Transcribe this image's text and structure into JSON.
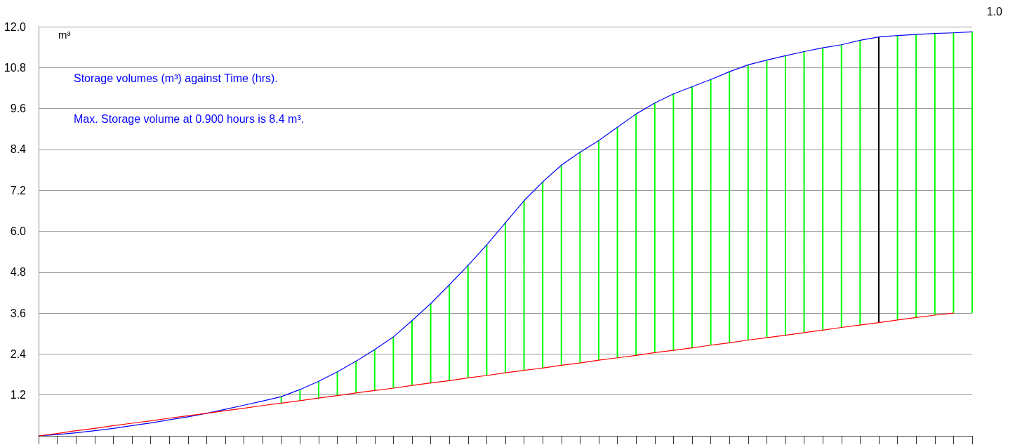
{
  "chart_data": {
    "type": "line",
    "title": "Storage volumes (m³) against Time (hrs).",
    "subtitle": "Max. Storage volume at 0.900 hours is 8.4 m³.",
    "ylabel": "m³",
    "annotations": [
      "1.0"
    ],
    "categories": [
      null,
      null,
      null,
      null,
      null,
      null,
      null,
      null,
      null,
      null,
      null,
      null,
      null,
      null,
      null,
      null,
      null,
      null,
      null,
      null,
      null,
      null,
      null,
      null,
      null,
      null,
      null,
      null,
      null,
      null,
      null,
      null,
      null,
      null,
      null,
      null,
      null,
      null,
      null,
      null,
      null,
      null,
      null,
      null,
      null,
      null,
      null,
      null,
      null,
      null,
      null
    ],
    "ylim": [
      0,
      12
    ],
    "yticks": [
      {
        "value": 1.2,
        "label": "1.2"
      },
      {
        "value": 2.4,
        "label": "2.4"
      },
      {
        "value": 3.6,
        "label": "3.6"
      },
      {
        "value": 4.8,
        "label": "4.8"
      },
      {
        "value": 6,
        "label": "6.0"
      },
      {
        "value": 7.2,
        "label": "7.2"
      },
      {
        "value": 8.4,
        "label": "8.4"
      },
      {
        "value": 9.6,
        "label": "9.6"
      },
      {
        "value": 10.8,
        "label": "10.8"
      },
      {
        "value": 12,
        "label": "12.0"
      }
    ],
    "grid": "y",
    "marker": "none",
    "tick_labels": "y",
    "series": [
      {
        "color": "#0000ff",
        "values": [
          0,
          0.04,
          0.09,
          0.15,
          0.22,
          0.3,
          0.38,
          0.47,
          0.56,
          0.66,
          0.78,
          0.9,
          1.02,
          1.15,
          1.36,
          1.6,
          1.88,
          2.19,
          2.53,
          2.9,
          3.38,
          3.88,
          4.43,
          5.0,
          5.6,
          6.25,
          6.9,
          7.45,
          7.94,
          8.32,
          8.66,
          9.05,
          9.44,
          9.76,
          10.03,
          10.24,
          10.45,
          10.68,
          10.88,
          11.02,
          11.15,
          11.27,
          11.38,
          11.47,
          11.6,
          11.7,
          11.74,
          11.77,
          11.8,
          11.82,
          11.85
        ]
      },
      {
        "color": "#ff0000",
        "values": [
          0,
          0.07,
          0.15,
          0.22,
          0.3,
          0.37,
          0.44,
          0.52,
          0.59,
          0.66,
          0.74,
          0.81,
          0.89,
          0.96,
          1.03,
          1.11,
          1.18,
          1.26,
          1.33,
          1.4,
          1.48,
          1.55,
          1.62,
          1.7,
          1.77,
          1.85,
          1.92,
          1.99,
          2.07,
          2.14,
          2.22,
          2.29,
          2.36,
          2.44,
          2.51,
          2.58,
          2.66,
          2.73,
          2.81,
          2.88,
          2.95,
          3.03,
          3.1,
          3.18,
          3.25,
          3.32,
          3.4,
          3.47,
          3.54,
          3.6,
          null
        ]
      },
      {
        "type": "bar",
        "base": [
          null,
          null,
          null,
          null,
          null,
          null,
          null,
          null,
          null,
          null,
          null,
          null,
          null,
          0.96,
          1.03,
          1.11,
          1.18,
          1.26,
          1.33,
          1.4,
          1.48,
          1.55,
          1.62,
          1.7,
          1.77,
          1.85,
          1.92,
          1.99,
          2.07,
          2.14,
          2.22,
          2.29,
          2.36,
          2.44,
          2.51,
          2.58,
          2.66,
          2.73,
          2.81,
          2.88,
          2.95,
          3.03,
          3.1,
          3.18,
          3.25,
          3.32,
          3.4,
          3.47,
          3.54,
          3.6,
          3.6
        ],
        "values": [
          null,
          null,
          null,
          null,
          null,
          null,
          null,
          null,
          null,
          null,
          null,
          null,
          null,
          0.19,
          0.33,
          0.49,
          0.7,
          0.93,
          1.2,
          1.5,
          1.9,
          2.33,
          2.81,
          3.3,
          3.83,
          4.4,
          4.98,
          5.46,
          5.87,
          6.18,
          6.44,
          6.76,
          7.08,
          7.32,
          7.52,
          7.66,
          7.79,
          7.95,
          8.07,
          8.14,
          8.2,
          8.24,
          8.28,
          8.29,
          8.35,
          8.38,
          8.34,
          8.3,
          8.26,
          8.22,
          8.25
        ],
        "colors": [
          null,
          null,
          null,
          null,
          null,
          null,
          null,
          null,
          null,
          null,
          null,
          null,
          null,
          "#00ff00",
          "#00ff00",
          "#00ff00",
          "#00ff00",
          "#00ff00",
          "#00ff00",
          "#00ff00",
          "#00ff00",
          "#00ff00",
          "#00ff00",
          "#00ff00",
          "#00ff00",
          "#00ff00",
          "#00ff00",
          "#00ff00",
          "#00ff00",
          "#00ff00",
          "#00ff00",
          "#00ff00",
          "#00ff00",
          "#00ff00",
          "#00ff00",
          "#00ff00",
          "#00ff00",
          "#00ff00",
          "#00ff00",
          "#00ff00",
          "#00ff00",
          "#00ff00",
          "#00ff00",
          "#00ff00",
          "#00ff00",
          "#000000",
          "#00ff00",
          "#00ff00",
          "#00ff00",
          "#00ff00",
          "#00ff00"
        ]
      }
    ]
  }
}
